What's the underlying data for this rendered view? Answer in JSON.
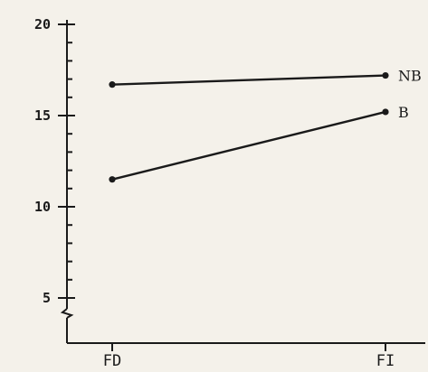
{
  "chart_data": {
    "type": "line",
    "categories": [
      "FD",
      "FI"
    ],
    "series": [
      {
        "name": "NB",
        "values": [
          16.7,
          17.2
        ]
      },
      {
        "name": "B",
        "values": [
          11.5,
          15.2
        ]
      }
    ],
    "yticks": [
      "5",
      "10",
      "15",
      "20"
    ],
    "ylim": [
      4,
      20
    ],
    "axis_break": true,
    "minor_tick_step": 1,
    "title": "",
    "xlabel": "",
    "ylabel": "",
    "grid": false,
    "legend": "direct labels at line ends"
  }
}
